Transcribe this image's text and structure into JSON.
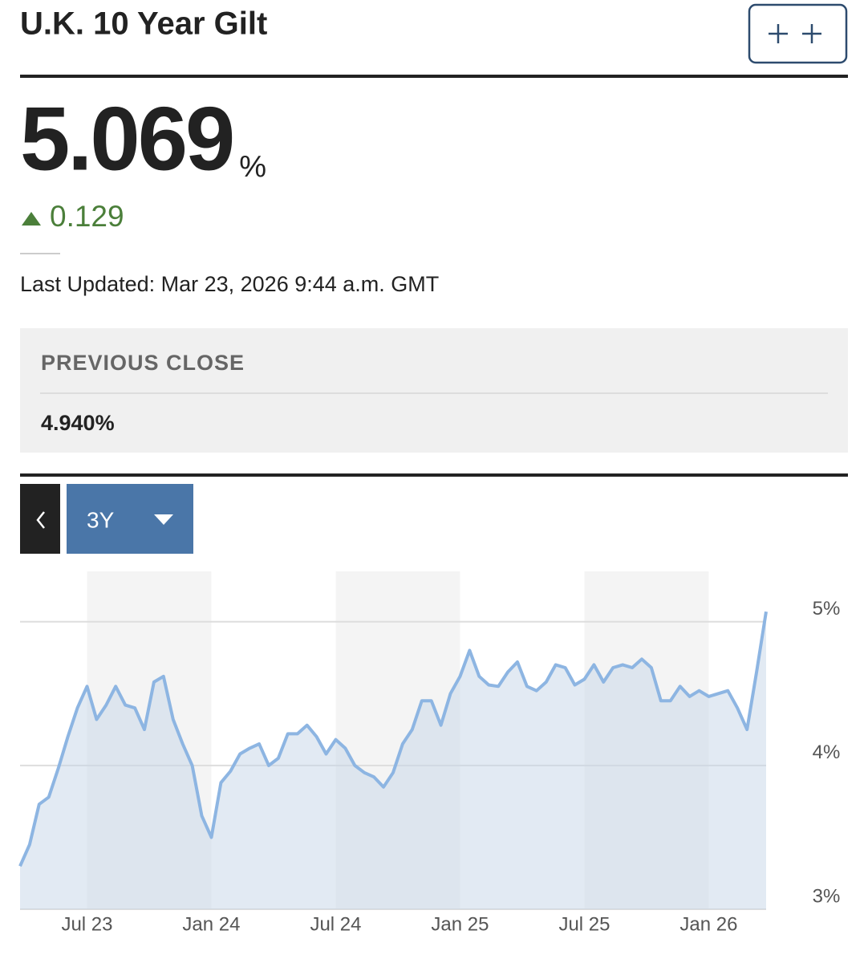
{
  "header": {
    "title": "U.K. 10 Year Gilt"
  },
  "quote": {
    "value": "5.069",
    "unit": "%",
    "change": "0.129",
    "last_updated": "Last Updated: Mar 23, 2026 9:44 a.m. GMT"
  },
  "previous_close": {
    "label": "PREVIOUS CLOSE",
    "value": "4.940%"
  },
  "range_selector": {
    "label": "3Y"
  },
  "chart_data": {
    "type": "area",
    "color": "#8db5e2",
    "categories": [
      null,
      null,
      null,
      null,
      null,
      null,
      null,
      "Jul 23",
      null,
      null,
      null,
      null,
      null,
      null,
      null,
      null,
      null,
      null,
      null,
      null,
      "Jan 24",
      null,
      null,
      null,
      null,
      null,
      null,
      null,
      null,
      null,
      null,
      null,
      null,
      "Jul 24",
      null,
      null,
      null,
      null,
      null,
      null,
      null,
      null,
      null,
      null,
      null,
      null,
      "Jan 25",
      null,
      null,
      null,
      null,
      null,
      null,
      null,
      null,
      null,
      null,
      null,
      null,
      "Jul 25",
      null,
      null,
      null,
      null,
      null,
      null,
      null,
      null,
      null,
      null,
      null,
      null,
      "Jan 26",
      null,
      null,
      null,
      null,
      null,
      null
    ],
    "values": [
      3.3,
      3.45,
      3.73,
      3.78,
      3.98,
      4.2,
      4.4,
      4.55,
      4.32,
      4.42,
      4.55,
      4.42,
      4.4,
      4.25,
      4.58,
      4.62,
      4.32,
      4.15,
      4.0,
      3.65,
      3.5,
      3.88,
      3.96,
      4.08,
      4.12,
      4.15,
      4.0,
      4.05,
      4.22,
      4.22,
      4.28,
      4.2,
      4.08,
      4.18,
      4.12,
      4.0,
      3.95,
      3.92,
      3.85,
      3.95,
      4.15,
      4.25,
      4.45,
      4.45,
      4.28,
      4.5,
      4.62,
      4.8,
      4.62,
      4.56,
      4.55,
      4.65,
      4.72,
      4.55,
      4.52,
      4.58,
      4.7,
      4.68,
      4.56,
      4.6,
      4.7,
      4.58,
      4.68,
      4.7,
      4.68,
      4.74,
      4.68,
      4.45,
      4.45,
      4.55,
      4.48,
      4.52,
      4.48,
      4.5,
      4.52,
      4.4,
      4.25,
      4.65,
      5.07
    ],
    "ylim": [
      3,
      5.35
    ],
    "yticks": [
      {
        "value": 3,
        "label": "3%"
      },
      {
        "value": 4,
        "label": "4%"
      },
      {
        "value": 5,
        "label": "5%"
      }
    ],
    "grid": true
  }
}
